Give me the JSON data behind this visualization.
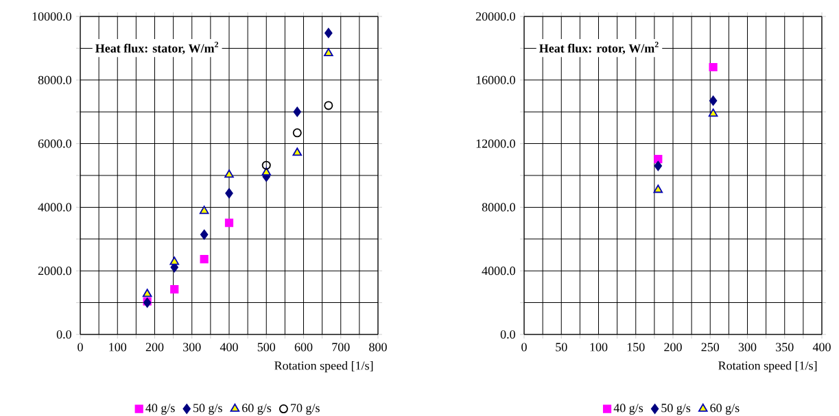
{
  "chart_data": [
    {
      "type": "scatter",
      "title": "Heat flux: stator, W/m$^{2}$",
      "xlabel": "Rotation speed [1/s]",
      "xlim": [
        0,
        800
      ],
      "ylim": [
        0,
        10000
      ],
      "xticks": [
        0,
        {
          "value": 50,
          "label": null
        },
        100,
        {
          "value": 150,
          "label": null
        },
        200,
        {
          "value": 250,
          "label": null
        },
        300,
        {
          "value": 350,
          "label": null
        },
        400,
        {
          "value": 450,
          "label": null
        },
        500,
        {
          "value": 550,
          "label": null
        },
        600,
        {
          "value": 650,
          "label": null
        },
        700,
        {
          "value": 750,
          "label": null
        },
        800
      ],
      "yticks": [
        {
          "value": 0,
          "label": "0.0"
        },
        {
          "value": 1000,
          "label": null
        },
        {
          "value": 2000,
          "label": "2000.0"
        },
        {
          "value": 3000,
          "label": null
        },
        {
          "value": 4000,
          "label": "4000.0"
        },
        {
          "value": 5000,
          "label": null
        },
        {
          "value": 6000,
          "label": "6000.0"
        },
        {
          "value": 7000,
          "label": null
        },
        {
          "value": 8000,
          "label": "8000.0"
        },
        {
          "value": 9000,
          "label": null
        },
        {
          "value": 10000,
          "label": "10000.0"
        }
      ],
      "grid": true,
      "legend": "bottom",
      "series": [
        {
          "name": "40 g/s",
          "color": "#ff00ff",
          "marker": "square",
          "x": [
            180,
            253,
            333,
            400
          ],
          "values": [
            1040,
            1420,
            2370,
            3510
          ]
        },
        {
          "name": "50 g/s",
          "color": "#000080",
          "marker": "diamond",
          "x": [
            180,
            253,
            333,
            400,
            500,
            583,
            667
          ],
          "values": [
            1000,
            2110,
            3140,
            4440,
            4960,
            7000,
            9480
          ]
        },
        {
          "name": "60 g/s",
          "color": "#ffff00",
          "marker": "triangle",
          "x": [
            180,
            253,
            333,
            400,
            500,
            583,
            667
          ],
          "values": [
            1270,
            2280,
            3880,
            5020,
            5090,
            5710,
            8840
          ]
        },
        {
          "name": "70 g/s",
          "color": "#000000",
          "marker": "circle",
          "x": [
            500,
            583,
            667
          ],
          "values": [
            5320,
            6340,
            7200
          ]
        }
      ]
    },
    {
      "type": "scatter",
      "title": "Heat flux: rotor, W/m$^{2}$",
      "xlabel": "Rotation speed [1/s]",
      "xlim": [
        0,
        400
      ],
      "ylim": [
        0,
        20000
      ],
      "xticks": [
        0,
        {
          "value": 25,
          "label": null
        },
        50,
        {
          "value": 75,
          "label": null
        },
        100,
        {
          "value": 125,
          "label": null
        },
        150,
        {
          "value": 175,
          "label": null
        },
        200,
        {
          "value": 225,
          "label": null
        },
        250,
        {
          "value": 275,
          "label": null
        },
        300,
        {
          "value": 325,
          "label": null
        },
        350,
        {
          "value": 375,
          "label": null
        },
        400
      ],
      "yticks": [
        {
          "value": 0,
          "label": "0.0"
        },
        {
          "value": 2000,
          "label": null
        },
        {
          "value": 4000,
          "label": "4000.0"
        },
        {
          "value": 6000,
          "label": null
        },
        {
          "value": 8000,
          "label": "8000.0"
        },
        {
          "value": 10000,
          "label": null
        },
        {
          "value": 12000,
          "label": "12000.0"
        },
        {
          "value": 14000,
          "label": null
        },
        {
          "value": 16000,
          "label": "16000.0"
        },
        {
          "value": 18000,
          "label": null
        },
        {
          "value": 20000,
          "label": "20000.0"
        }
      ],
      "grid": true,
      "legend": "bottom",
      "series": [
        {
          "name": "40 g/s",
          "color": "#ff00ff",
          "marker": "square",
          "x": [
            180,
            254
          ],
          "values": [
            11030,
            16810
          ]
        },
        {
          "name": "50 g/s",
          "color": "#000080",
          "marker": "diamond",
          "x": [
            180,
            254
          ],
          "values": [
            10600,
            14700
          ]
        },
        {
          "name": "60 g/s",
          "color": "#ffff00",
          "marker": "triangle",
          "x": [
            180,
            254
          ],
          "values": [
            9090,
            13880
          ]
        }
      ]
    }
  ]
}
